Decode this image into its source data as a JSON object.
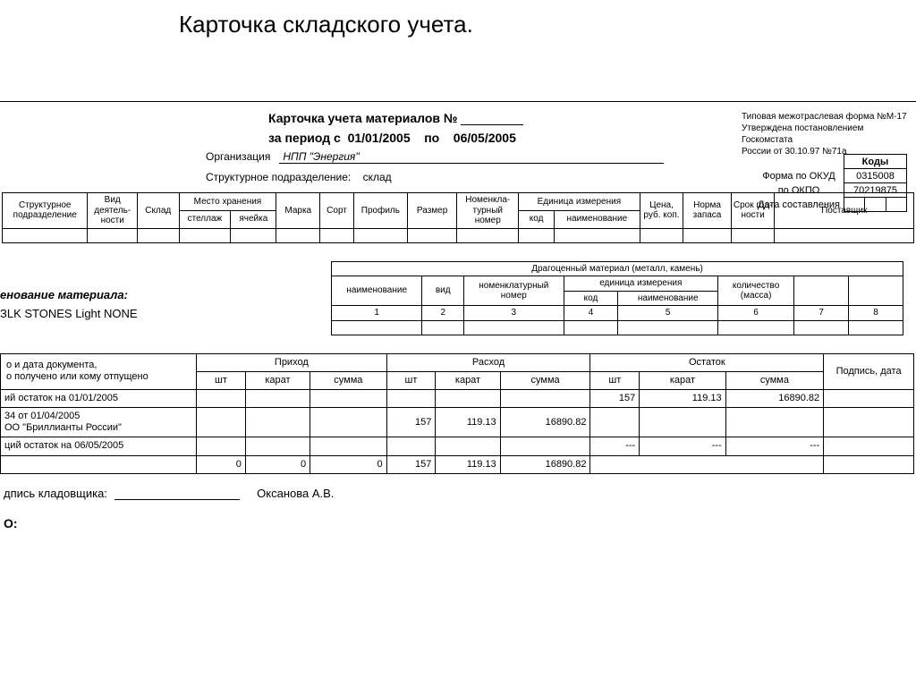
{
  "page_title": "Карточка складского учета.",
  "header": {
    "card_title_prefix": "Карточка учета материалов №",
    "period_label": "за период с",
    "date_from": "01/01/2005",
    "period_to_label": "по",
    "date_to": "06/05/2005"
  },
  "meta": {
    "line1": "Типовая межотраслевая форма №М-17",
    "line2": "Утверждена постановлением Госкомстата",
    "line3": "России от 30.10.97 №71а"
  },
  "codes": {
    "header": "Коды",
    "okud_label": "Форма по ОКУД",
    "okud": "0315008",
    "okpo_label": "по ОКПО",
    "okpo": "70219875",
    "date_label": "Дата составления"
  },
  "org": {
    "label": "Организация",
    "value": "НПП \"Энергия\"",
    "struct_label": "Структурное подразделение:",
    "struct_value": "склад"
  },
  "table1_headers": {
    "struct": "Структурное подразделение",
    "activity": "Вид деятель- ности",
    "warehouse": "Склад",
    "storage": "Место хранения",
    "rack": "стеллаж",
    "cell": "ячейка",
    "brand": "Марка",
    "sort": "Сорт",
    "profile": "Профиль",
    "size": "Размер",
    "nomen": "Номенкла- турный номер",
    "unit": "Единица измерения",
    "unit_code": "код",
    "unit_name": "наименование",
    "price": "Цена, руб. коп.",
    "norm": "Норма запаса",
    "shelf": "Срок год- ности",
    "supplier": "Поставщик"
  },
  "material": {
    "label": "енование материала:",
    "value": "ЗLK STONES Light NONE"
  },
  "table2_headers": {
    "top": "Драгоценный материал (металл, камень)",
    "name": "наименование",
    "kind": "вид",
    "nomen": "номенклатурный номер",
    "unit": "единица измерения",
    "unit_code": "код",
    "unit_name": "наименование",
    "qty": "количество (масса)"
  },
  "table2_nums": [
    "1",
    "2",
    "3",
    "4",
    "5",
    "6",
    "7",
    "8"
  ],
  "table3": {
    "col0": "о и дата документа,\nо получено или кому отпущено",
    "income": "Приход",
    "expense": "Расход",
    "balance": "Остаток",
    "sign": "Подпись, дата",
    "pcs": "шт",
    "carat": "карат",
    "sum": "сумма",
    "rows": [
      {
        "label": "ий остаток на 01/01/2005",
        "in_pcs": "",
        "in_ct": "",
        "in_sum": "",
        "ex_pcs": "",
        "ex_ct": "",
        "ex_sum": "",
        "bal_pcs": "157",
        "bal_ct": "119.13",
        "bal_sum": "16890.82",
        "sign": ""
      },
      {
        "label": "34 от 01/04/2005\nОО \"Бриллианты России\"",
        "in_pcs": "",
        "in_ct": "",
        "in_sum": "",
        "ex_pcs": "157",
        "ex_ct": "119.13",
        "ex_sum": "16890.82",
        "bal_pcs": "",
        "bal_ct": "",
        "bal_sum": "",
        "sign": ""
      },
      {
        "label": "ций остаток на 06/05/2005",
        "in_pcs": "",
        "in_ct": "",
        "in_sum": "",
        "ex_pcs": "",
        "ex_ct": "",
        "ex_sum": "",
        "bal_pcs": "---",
        "bal_ct": "---",
        "bal_sum": "---",
        "sign": ""
      },
      {
        "label": "",
        "in_pcs": "0",
        "in_ct": "0",
        "in_sum": "0",
        "ex_pcs": "157",
        "ex_ct": "119.13",
        "ex_sum": "16890.82",
        "bal_pcs": "",
        "bal_ct": "",
        "bal_sum": "",
        "sign": ""
      }
    ]
  },
  "sign": {
    "label": "дпись кладовщика:",
    "name": "Оксанова А.В."
  },
  "bottom_cut": "О:"
}
